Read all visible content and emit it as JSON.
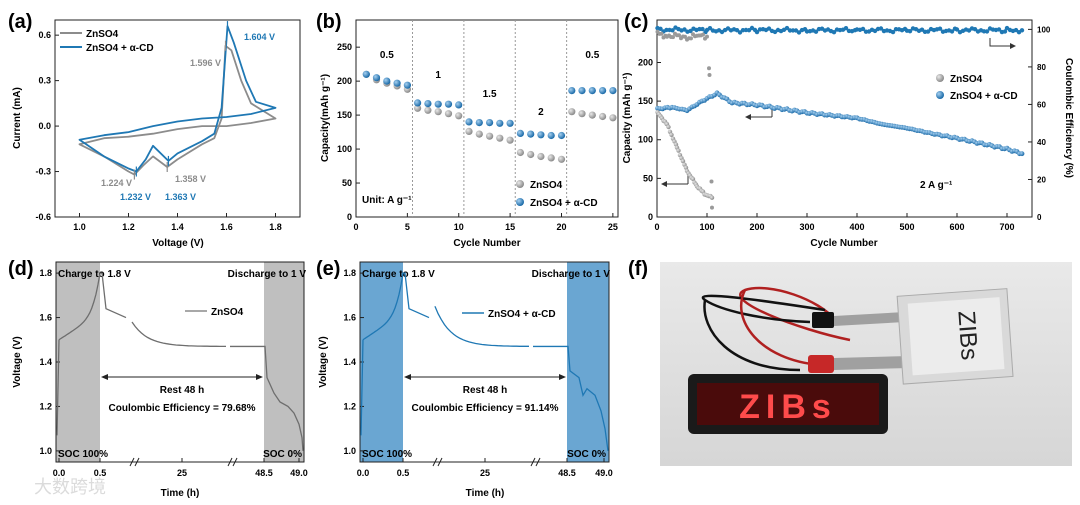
{
  "colors": {
    "gray": "#8c8c8c",
    "blue": "#1f78b4",
    "shade_gray": "#bfbfbf",
    "shade_blue": "#6aa6d2",
    "axis": "#222222"
  },
  "panel_labels": [
    "(a)",
    "(b)",
    "(c)",
    "(d)",
    "(e)",
    "(f)"
  ],
  "watermark": "大数跨境",
  "chart_data": [
    {
      "id": "a",
      "type": "line",
      "xlabel": "Voltage (V)",
      "ylabel": "Current (mA)",
      "xlim": [
        0.9,
        1.9
      ],
      "ylim": [
        -0.6,
        0.7
      ],
      "xticks": [
        "1.0",
        "1.2",
        "1.4",
        "1.6",
        "1.8"
      ],
      "yticks": [
        "-0.6",
        "-0.3",
        "0.0",
        "0.3",
        "0.6"
      ],
      "legend": [
        "ZnSO4",
        "ZnSO4 + α-CD"
      ],
      "series": [
        {
          "name": "ZnSO4",
          "x": [
            1.0,
            1.1,
            1.2,
            1.224,
            1.26,
            1.3,
            1.358,
            1.4,
            1.5,
            1.55,
            1.58,
            1.596,
            1.62,
            1.66,
            1.7,
            1.8,
            1.7,
            1.6,
            1.5,
            1.4,
            1.3,
            1.2,
            1.1,
            1.0
          ],
          "y": [
            -0.12,
            -0.2,
            -0.3,
            -0.32,
            -0.26,
            -0.2,
            -0.27,
            -0.22,
            -0.12,
            -0.08,
            0.05,
            0.53,
            0.5,
            0.3,
            0.15,
            0.05,
            0.02,
            0.0,
            0.0,
            -0.02,
            -0.05,
            -0.07,
            -0.08,
            -0.12
          ]
        },
        {
          "name": "ZnSO4 + α-CD",
          "x": [
            1.0,
            1.1,
            1.2,
            1.232,
            1.27,
            1.3,
            1.363,
            1.4,
            1.5,
            1.55,
            1.58,
            1.604,
            1.63,
            1.68,
            1.72,
            1.8,
            1.7,
            1.6,
            1.5,
            1.4,
            1.3,
            1.2,
            1.1,
            1.0
          ],
          "y": [
            -0.09,
            -0.2,
            -0.28,
            -0.3,
            -0.22,
            -0.13,
            -0.23,
            -0.18,
            -0.1,
            -0.05,
            0.12,
            0.66,
            0.55,
            0.3,
            0.16,
            0.12,
            0.08,
            0.06,
            0.05,
            0.03,
            0.0,
            -0.04,
            -0.06,
            -0.09
          ]
        }
      ],
      "annotations": {
        "gray_ox": "1.596 V",
        "blue_ox": "1.604 V",
        "gray_r1": "1.224 V",
        "gray_r2": "1.358 V",
        "blue_r1": "1.232 V",
        "blue_r2": "1.363 V"
      }
    },
    {
      "id": "b",
      "type": "scatter",
      "xlabel": "Cycle Number",
      "ylabel": "Capacity(mAh g⁻¹)",
      "xlim": [
        0,
        25.5
      ],
      "ylim": [
        0,
        290
      ],
      "xticks": [
        "0",
        "5",
        "10",
        "15",
        "20",
        "25"
      ],
      "yticks": [
        "0",
        "50",
        "100",
        "150",
        "200",
        "250"
      ],
      "rate_labels": [
        "0.5",
        "1",
        "1.5",
        "2",
        "0.5"
      ],
      "unit": "Unit: A g⁻¹",
      "legend": [
        "ZnSO4",
        "ZnSO4 + α-CD"
      ],
      "series": [
        {
          "name": "ZnSO4",
          "x": [
            1,
            2,
            3,
            4,
            5,
            6,
            7,
            8,
            9,
            10,
            11,
            12,
            13,
            14,
            15,
            16,
            17,
            18,
            19,
            20,
            21,
            22,
            23,
            24,
            25
          ],
          "y": [
            210,
            202,
            197,
            193,
            188,
            160,
            157,
            155,
            152,
            149,
            126,
            122,
            119,
            116,
            113,
            95,
            92,
            89,
            87,
            85,
            155,
            152,
            150,
            148,
            146
          ]
        },
        {
          "name": "ZnSO4 + α-CD",
          "x": [
            1,
            2,
            3,
            4,
            5,
            6,
            7,
            8,
            9,
            10,
            11,
            12,
            13,
            14,
            15,
            16,
            17,
            18,
            19,
            20,
            21,
            22,
            23,
            24,
            25
          ],
          "y": [
            210,
            205,
            200,
            197,
            194,
            168,
            167,
            166,
            166,
            165,
            140,
            139,
            139,
            138,
            138,
            123,
            122,
            121,
            120,
            120,
            186,
            186,
            186,
            186,
            186
          ]
        }
      ]
    },
    {
      "id": "c",
      "type": "scatter",
      "xlabel": "Cycle Number",
      "ylabel": "Capacity (mAh g⁻¹)",
      "y2label": "Coulombic Efficiency (%)",
      "xlim": [
        0,
        750
      ],
      "ylim": [
        0,
        255
      ],
      "y2lim": [
        0,
        105
      ],
      "xticks": [
        "0",
        "100",
        "200",
        "300",
        "400",
        "500",
        "600",
        "700"
      ],
      "yticks": [
        "0",
        "50",
        "100",
        "150",
        "200"
      ],
      "y2ticks": [
        "0",
        "20",
        "40",
        "60",
        "80",
        "100"
      ],
      "rate": "2 A g⁻¹",
      "legend": [
        "ZnSO4",
        "ZnSO4 + α-CD"
      ],
      "series": [
        {
          "name": "ZnSO4 capacity",
          "x": [
            1,
            20,
            40,
            60,
            80,
            95,
            110
          ],
          "y": [
            135,
            120,
            90,
            60,
            40,
            30,
            25
          ]
        },
        {
          "name": "ZnSO4 + α-CD capacity",
          "x": [
            1,
            30,
            60,
            90,
            120,
            150,
            200,
            300,
            400,
            450,
            500,
            550,
            600,
            650,
            700,
            730
          ],
          "y": [
            140,
            142,
            138,
            150,
            160,
            148,
            145,
            135,
            128,
            120,
            115,
            108,
            102,
            95,
            88,
            82
          ]
        },
        {
          "name": "ZnSO4 CE",
          "x": [
            1,
            20,
            40,
            60,
            80,
            100,
            105,
            110
          ],
          "y": [
            98,
            96,
            97,
            95,
            97,
            96,
            75,
            5
          ]
        },
        {
          "name": "ZnSO4 + α-CD CE",
          "x": [
            1,
            100,
            200,
            300,
            400,
            500,
            600,
            700,
            730
          ],
          "y": [
            100,
            99.5,
            99.6,
            99.5,
            99.6,
            99.5,
            99.6,
            99.5,
            99.5
          ]
        }
      ]
    },
    {
      "id": "d",
      "type": "line",
      "xlabel": "Time (h)",
      "ylabel": "Voltage (V)",
      "ylim": [
        0.95,
        1.85
      ],
      "xticks": [
        "0.0",
        "0.5",
        "25",
        "48.5",
        "49.0"
      ],
      "yticks": [
        "1.0",
        "1.2",
        "1.4",
        "1.6",
        "1.8"
      ],
      "legend": "ZnSO4",
      "charge_label": "Charge to 1.8 V",
      "discharge_label": "Discharge to 1 V",
      "rest_label": "Rest 48 h",
      "ce_label": "Coulombic Efficiency = 79.68%",
      "soc_start": "SOC 100%",
      "soc_end": "SOC 0%"
    },
    {
      "id": "e",
      "type": "line",
      "xlabel": "Time (h)",
      "ylabel": "Voltage (V)",
      "ylim": [
        0.95,
        1.85
      ],
      "xticks": [
        "0.0",
        "0.5",
        "25",
        "48.5",
        "49.0"
      ],
      "yticks": [
        "1.0",
        "1.2",
        "1.4",
        "1.6",
        "1.8"
      ],
      "legend": "ZnSO4 + α-CD",
      "charge_label": "Charge to 1.8 V",
      "discharge_label": "Discharge to 1 V",
      "rest_label": "Rest 48 h",
      "ce_label": "Coulombic Efficiency = 91.14%",
      "soc_start": "SOC 100%",
      "soc_end": "SOC 0%"
    }
  ],
  "photo": {
    "pouch_text": "ZIBs",
    "led_text": "ZIBs"
  }
}
